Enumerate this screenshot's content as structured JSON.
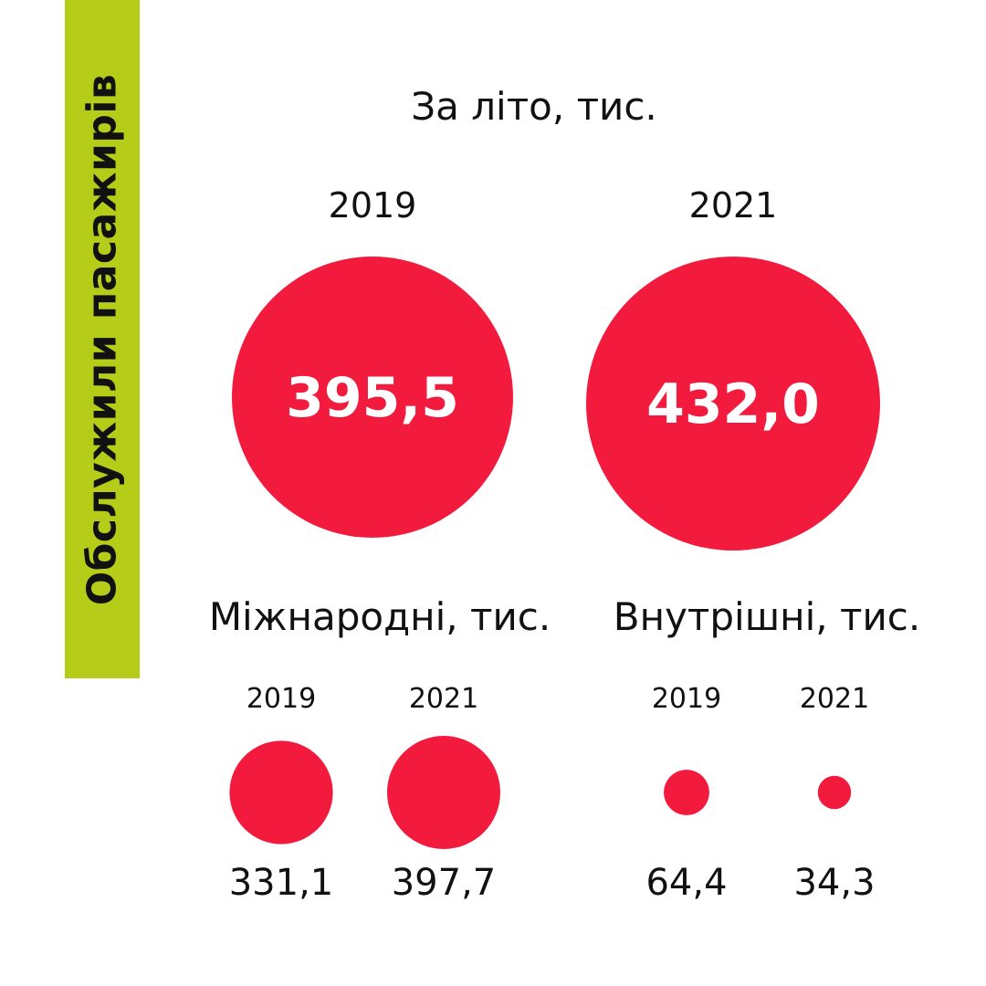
{
  "side_label": "Обслужили пасажирів",
  "chart_data": {
    "type": "bubble",
    "title": "За літо, тис.",
    "color": "#f31b3d",
    "accent_color": "#b5cc18",
    "totals": [
      {
        "year": "2019",
        "value": 395.5,
        "label": "395,5"
      },
      {
        "year": "2021",
        "value": 432.0,
        "label": "432,0"
      }
    ],
    "groups": [
      {
        "name": "Міжнародні, тис.",
        "items": [
          {
            "year": "2019",
            "value": 331.1,
            "label": "331,1"
          },
          {
            "year": "2021",
            "value": 397.7,
            "label": "397,7"
          }
        ]
      },
      {
        "name": "Внутрішні, тис.",
        "items": [
          {
            "year": "2019",
            "value": 64.4,
            "label": "64,4"
          },
          {
            "year": "2021",
            "value": 34.3,
            "label": "34,3"
          }
        ]
      }
    ]
  }
}
